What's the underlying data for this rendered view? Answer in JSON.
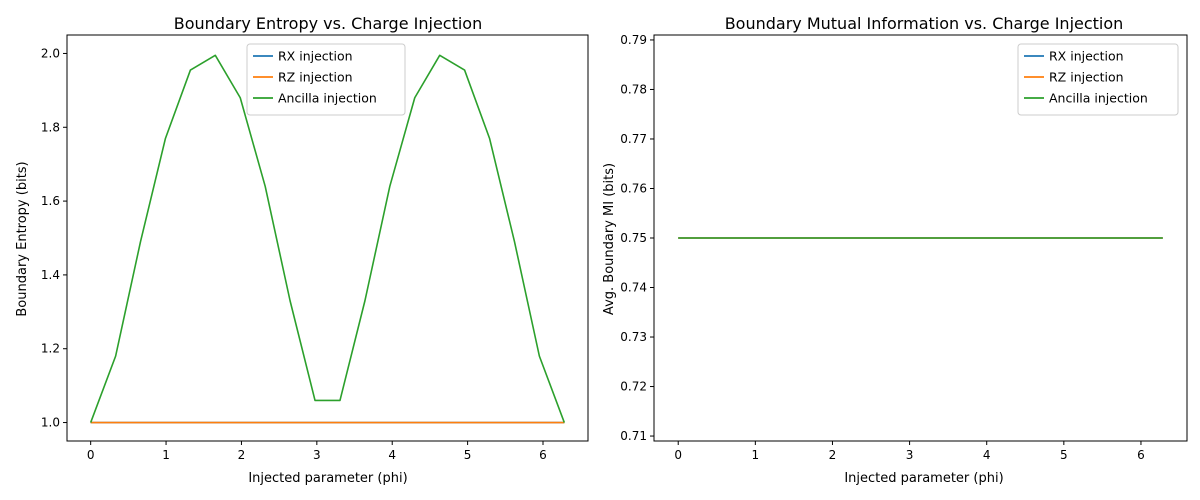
{
  "chart_data": [
    {
      "type": "line",
      "title": "Boundary Entropy vs. Charge Injection",
      "xlabel": "Injected parameter (phi)",
      "ylabel": "Boundary Entropy (bits)",
      "xlim": [
        -0.314,
        6.597
      ],
      "ylim": [
        0.95,
        2.05
      ],
      "xticks": [
        0,
        1,
        2,
        3,
        4,
        5,
        6
      ],
      "xtick_labels": [
        "0",
        "1",
        "2",
        "3",
        "4",
        "5",
        "6"
      ],
      "yticks": [
        1.0,
        1.2,
        1.4,
        1.6,
        1.8,
        2.0
      ],
      "ytick_labels": [
        "1.0",
        "1.2",
        "1.4",
        "1.6",
        "1.8",
        "2.0"
      ],
      "grid": false,
      "legend": "upper center",
      "series": [
        {
          "name": "RX injection",
          "color": "#1f77b4",
          "x": [
            0,
            6.283
          ],
          "y": [
            1.0,
            1.0
          ]
        },
        {
          "name": "RZ injection",
          "color": "#ff7f0e",
          "x": [
            0,
            6.283
          ],
          "y": [
            1.0,
            1.0
          ]
        },
        {
          "name": "Ancilla injection",
          "color": "#2ca02c",
          "x": [
            0,
            0.331,
            0.661,
            0.992,
            1.323,
            1.653,
            1.984,
            2.315,
            2.645,
            2.976,
            3.307,
            3.638,
            3.968,
            4.299,
            4.63,
            4.96,
            5.291,
            5.622,
            5.952,
            6.283
          ],
          "y": [
            1.0,
            1.18,
            1.49,
            1.77,
            1.955,
            1.995,
            1.88,
            1.64,
            1.33,
            1.06,
            1.06,
            1.33,
            1.64,
            1.88,
            1.995,
            1.955,
            1.77,
            1.49,
            1.18,
            1.0
          ]
        }
      ]
    },
    {
      "type": "line",
      "title": "Boundary Mutual Information vs. Charge Injection",
      "xlabel": "Injected parameter (phi)",
      "ylabel": "Avg. Boundary MI (bits)",
      "xlim": [
        -0.314,
        6.597
      ],
      "ylim": [
        0.709,
        0.791
      ],
      "xticks": [
        0,
        1,
        2,
        3,
        4,
        5,
        6
      ],
      "xtick_labels": [
        "0",
        "1",
        "2",
        "3",
        "4",
        "5",
        "6"
      ],
      "yticks": [
        0.71,
        0.72,
        0.73,
        0.74,
        0.75,
        0.76,
        0.77,
        0.78,
        0.79
      ],
      "ytick_labels": [
        "0.71",
        "0.72",
        "0.73",
        "0.74",
        "0.75",
        "0.76",
        "0.77",
        "0.78",
        "0.79"
      ],
      "grid": false,
      "legend": "upper right",
      "series": [
        {
          "name": "RX injection",
          "color": "#1f77b4",
          "x": [
            0,
            6.283
          ],
          "y": [
            0.75,
            0.75
          ]
        },
        {
          "name": "RZ injection",
          "color": "#ff7f0e",
          "x": [
            0,
            6.283
          ],
          "y": [
            0.75,
            0.75
          ]
        },
        {
          "name": "Ancilla injection",
          "color": "#2ca02c",
          "x": [
            0,
            6.283
          ],
          "y": [
            0.75,
            0.75
          ]
        }
      ]
    }
  ]
}
